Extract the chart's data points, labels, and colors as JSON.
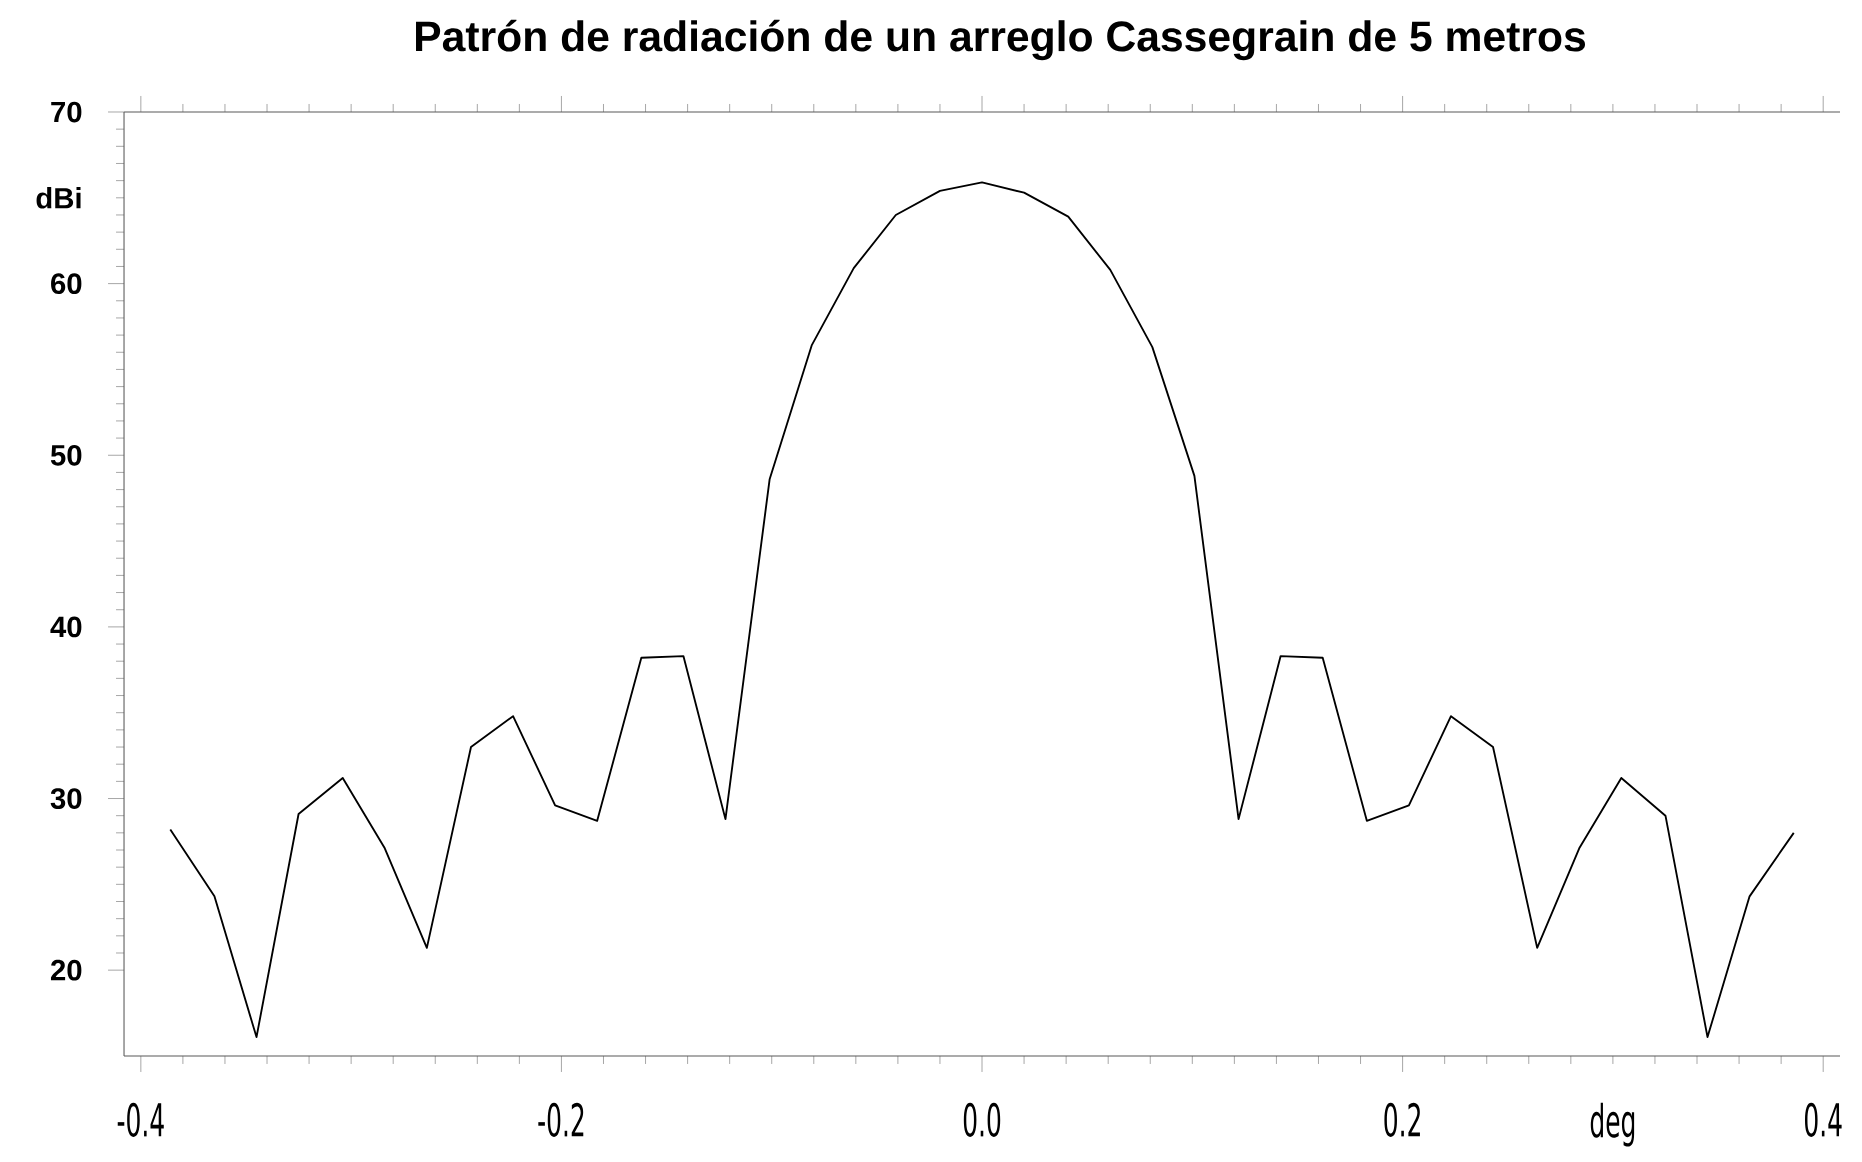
{
  "chart_data": {
    "type": "line",
    "title": "Patrón de radiación de un arreglo Cassegrain de 5 metros",
    "xlabel": "deg",
    "ylabel": "dBi",
    "x": [
      -0.386,
      -0.365,
      -0.345,
      -0.325,
      -0.304,
      -0.284,
      -0.264,
      -0.243,
      -0.223,
      -0.203,
      -0.183,
      -0.162,
      -0.142,
      -0.122,
      -0.101,
      -0.081,
      -0.061,
      -0.041,
      -0.02,
      0.0,
      0.02,
      0.041,
      0.061,
      0.081,
      0.101,
      0.122,
      0.142,
      0.162,
      0.183,
      0.203,
      0.223,
      0.243,
      0.264,
      0.284,
      0.304,
      0.325,
      0.345,
      0.365,
      0.386
    ],
    "series": [
      {
        "color": "#000000",
        "values": [
          28.2,
          24.3,
          16.1,
          29.1,
          31.2,
          27.1,
          21.3,
          33.0,
          34.8,
          29.6,
          28.7,
          38.2,
          38.3,
          28.8,
          48.6,
          56.4,
          60.9,
          64.0,
          65.4,
          65.9,
          65.3,
          63.9,
          60.8,
          56.3,
          48.8,
          28.8,
          38.3,
          38.2,
          28.7,
          29.6,
          34.8,
          33.0,
          21.3,
          27.1,
          31.2,
          29.0,
          16.1,
          24.3,
          28.0
        ]
      }
    ],
    "xlim": [
      -0.408,
      0.408
    ],
    "ylim": [
      15,
      70
    ],
    "xticks": [
      {
        "value": -0.4,
        "label": "-0.4"
      },
      {
        "value": -0.2,
        "label": "-0.2"
      },
      {
        "value": 0.0,
        "label": "0.0"
      },
      {
        "value": 0.2,
        "label": "0.2"
      },
      {
        "value": 0.4,
        "label": "0.4"
      }
    ],
    "yticks": [
      20,
      30,
      40,
      50,
      60,
      70
    ],
    "grid": false,
    "marker": "none",
    "line_style": "solid"
  }
}
